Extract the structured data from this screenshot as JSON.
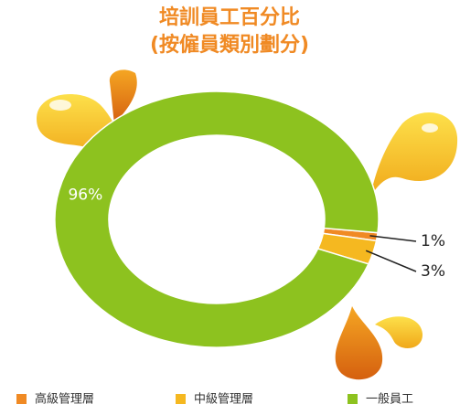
{
  "chart_data": {
    "type": "donut",
    "title": "培訓員工百分比",
    "subtitle": "(按僱員類別劃分)",
    "categories": [
      "高級管理層",
      "中級管理層",
      "一般員工"
    ],
    "values": [
      1,
      3,
      96
    ],
    "value_labels": [
      "1%",
      "3%",
      "96%"
    ],
    "colors": [
      "#f08a24",
      "#f5b820",
      "#8dc21f"
    ],
    "legend": "bottom"
  }
}
